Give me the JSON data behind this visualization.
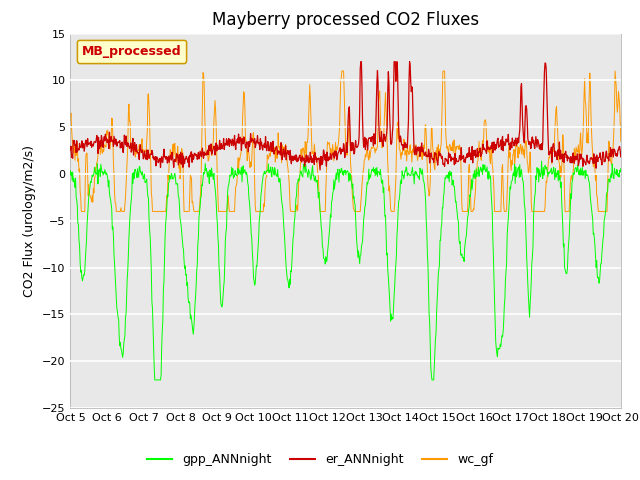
{
  "title": "Mayberry processed CO2 Fluxes",
  "ylabel": "CO2 Flux (urology/m2/s)",
  "ylim": [
    -25,
    15
  ],
  "yticks": [
    -25,
    -20,
    -15,
    -10,
    -5,
    0,
    5,
    10,
    15
  ],
  "legend_label": "MB_processed",
  "legend_color_bg": "#ffffcc",
  "legend_color_border": "#cc9900",
  "legend_text_color": "#cc0000",
  "series_colors": {
    "gpp_ANNnight": "#00ff00",
    "er_ANNnight": "#cc0000",
    "wc_gf": "#ff9900"
  },
  "background_color": "#e8e8e8",
  "grid_color": "#ffffff",
  "title_fontsize": 12,
  "axis_fontsize": 9,
  "tick_fontsize": 8,
  "n_points": 960,
  "days": 16,
  "x_start": 5,
  "x_end": 20,
  "x_ticks": [
    5,
    6,
    7,
    8,
    9,
    10,
    11,
    12,
    13,
    14,
    15,
    16,
    17,
    18,
    19,
    20
  ],
  "x_tick_labels": [
    "Oct 5",
    "Oct 6",
    "Oct 7",
    "Oct 8",
    "Oct 9",
    "Oct 10",
    "Oct 11",
    "Oct 12",
    "Oct 13",
    "Oct 14",
    "Oct 15",
    "Oct 16",
    "Oct 17",
    "Oct 18",
    "Oct 19",
    "Oct 20"
  ]
}
